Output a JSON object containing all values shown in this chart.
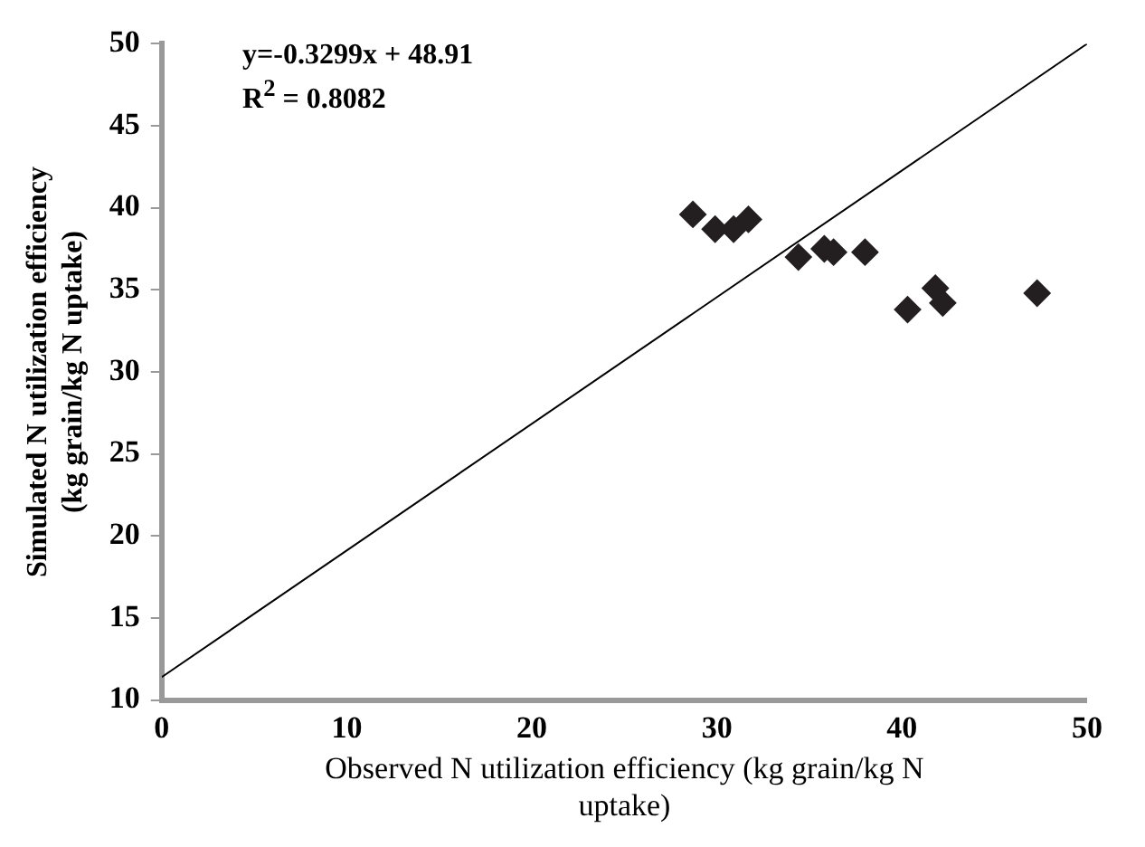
{
  "chart_data": {
    "type": "scatter",
    "xlabel": "Observed N utilization efficiency (kg grain/kg N\nuptake)",
    "ylabel": "Simulated N utilization efficiency\n(kg grain/kg N uptake)",
    "annotations": [
      "y=-0.3299x + 48.91\nR$^{2}$ = 0.8082"
    ],
    "series": [
      {
        "color": "#231f20",
        "marker": "diamond",
        "x": [
          28.7,
          29.9,
          30.9,
          31.7,
          34.4,
          35.8,
          36.3,
          38.0,
          40.3,
          41.8,
          42.2,
          47.3
        ],
        "values": [
          39.6,
          38.7,
          38.7,
          39.3,
          37.0,
          37.5,
          37.3,
          37.3,
          33.8,
          35.1,
          34.2,
          34.8
        ]
      },
      {
        "type": "line",
        "color": "#000000",
        "marker": "none",
        "x": [
          0,
          50
        ],
        "values": [
          11.4,
          50
        ]
      }
    ],
    "xlim": [
      0,
      50
    ],
    "xticks": [
      0,
      10,
      20,
      30,
      40,
      50
    ],
    "ylim": [
      10,
      50
    ],
    "yticks": [
      10,
      15,
      20,
      25,
      30,
      35,
      40,
      45,
      50
    ],
    "grid": false,
    "legend": false
  }
}
